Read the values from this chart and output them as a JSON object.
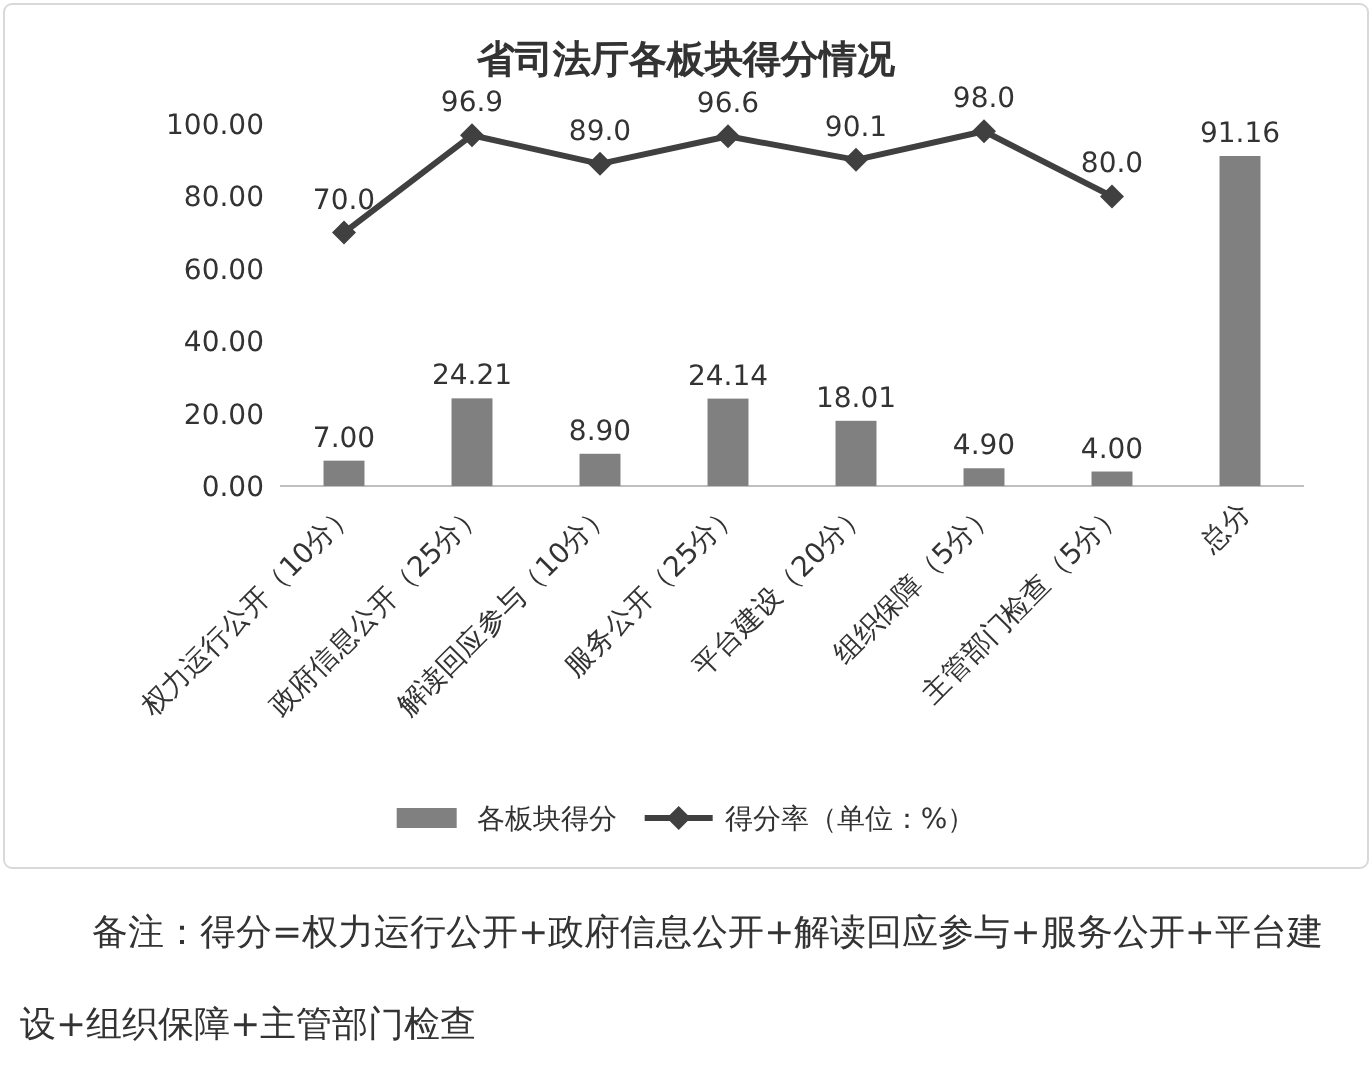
{
  "chart_data": {
    "type": "bar",
    "title": "省司法厅各板块得分情况",
    "categories": [
      "权力运行公开（10分）",
      "政府信息公开（25分）",
      "解读回应参与（10分）",
      "服务公开（25分）",
      "平台建设（20分）",
      "组织保障（5分）",
      "主管部门检查（5分）",
      "总分"
    ],
    "series": [
      {
        "name": "各板块得分",
        "color": "#808080",
        "values": [
          7.0,
          24.21,
          8.9,
          24.14,
          18.01,
          4.9,
          4.0,
          91.16
        ],
        "value_labels": [
          "7.00",
          "24.21",
          "8.90",
          "24.14",
          "18.01",
          "4.90",
          "4.00",
          "91.16"
        ]
      },
      {
        "name": "得分率（单位：%）",
        "type": "line",
        "color": "#404040",
        "values": [
          70.0,
          96.9,
          89.0,
          96.6,
          90.1,
          98.0,
          80.0,
          null
        ],
        "value_labels": [
          "70.0",
          "96.9",
          "89.0",
          "96.6",
          "90.1",
          "98.0",
          "80.0",
          null
        ]
      }
    ],
    "ylim": [
      0,
      100
    ],
    "yticks": [
      {
        "value": 0,
        "label": "0.00"
      },
      {
        "value": 20,
        "label": "20.00"
      },
      {
        "value": 40,
        "label": "40.00"
      },
      {
        "value": 60,
        "label": "60.00"
      },
      {
        "value": 80,
        "label": "80.00"
      },
      {
        "value": 100,
        "label": "100.00"
      }
    ],
    "marker": "diamond",
    "line_style": "solid",
    "legend": "bottom",
    "annotations": [
      "备注：得分=权力运行公开+政府信息公开+解读回应参与+服务公开+平台建设+组织保障+主管部门检查"
    ]
  }
}
